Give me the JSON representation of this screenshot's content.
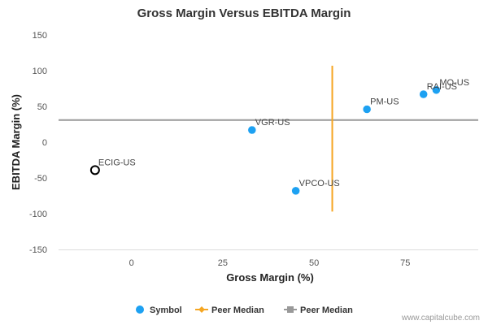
{
  "chart_data": {
    "type": "scatter",
    "title": "Gross Margin Versus EBITDA Margin",
    "xlabel": "Gross Margin (%)",
    "ylabel": "EBITDA Margin (%)",
    "xlim": [
      -20,
      95
    ],
    "ylim": [
      -150,
      150
    ],
    "xticks": [
      0,
      25,
      50,
      75
    ],
    "yticks": [
      -150,
      -100,
      -50,
      0,
      50,
      100,
      150
    ],
    "grid": false,
    "points": [
      {
        "label": "ECIG-US",
        "x": -10,
        "y": -39,
        "highlight": true
      },
      {
        "label": "VGR-US",
        "x": 33,
        "y": 17,
        "highlight": false
      },
      {
        "label": "VPCO-US",
        "x": 45,
        "y": -68,
        "highlight": false
      },
      {
        "label": "PM-US",
        "x": 64.5,
        "y": 46,
        "highlight": false
      },
      {
        "label": "RAI-US",
        "x": 80,
        "y": 67,
        "highlight": false
      },
      {
        "label": "MO-US",
        "x": 83.5,
        "y": 73,
        "highlight": false
      }
    ],
    "peer_median_x": {
      "name": "Peer Median",
      "value": 55,
      "y_range": [
        -97,
        107
      ],
      "color": "#f5a623"
    },
    "peer_median_y": {
      "name": "Peer Median",
      "value": 31,
      "color": "#999999"
    },
    "legend": {
      "placement": "bottom",
      "items": [
        {
          "label": "Symbol",
          "color": "#1da1f2",
          "marker": "circle"
        },
        {
          "label": "Peer Median",
          "color": "#f5a623",
          "marker": "diamond-line"
        },
        {
          "label": "Peer Median",
          "color": "#999999",
          "marker": "square-line"
        }
      ]
    },
    "point_color": "#1da1f2",
    "highlight_stroke": "#000000"
  },
  "credit": "www.capitalcube.com"
}
